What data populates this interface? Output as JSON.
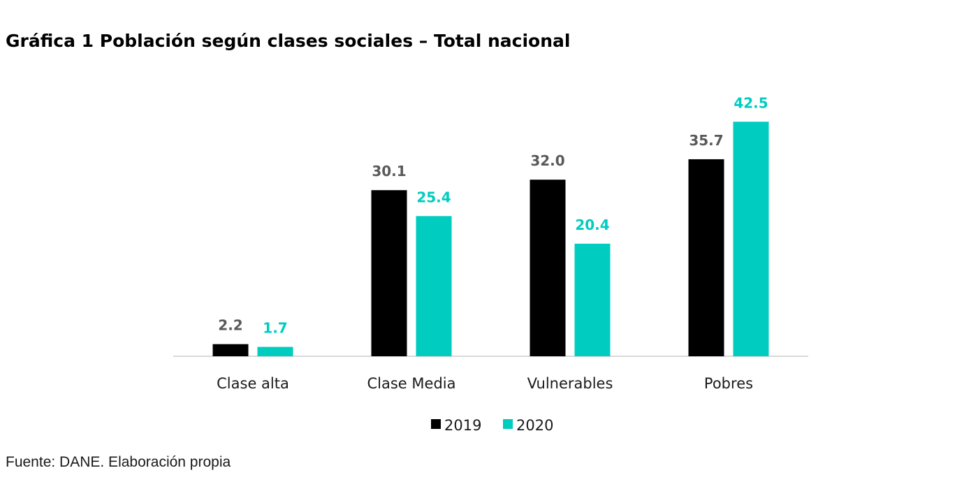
{
  "chart_data": {
    "type": "bar",
    "title": "Gráfica 1 Población según clases sociales – Total nacional",
    "categories": [
      "Clase alta",
      "Clase Media",
      "Vulnerables",
      "Pobres"
    ],
    "series": [
      {
        "name": "2019",
        "values": [
          "2.2",
          "30.1",
          "32.0",
          "35.7"
        ],
        "color": "#000000",
        "label_color": "#595959"
      },
      {
        "name": "2020",
        "values": [
          "1.7",
          "25.4",
          "20.4",
          "42.5"
        ],
        "color": "#00CCC0",
        "label_color": "#00CCC0"
      }
    ],
    "ylim": [
      0,
      45
    ],
    "grid": false,
    "legend": "bottom",
    "xlabel": "",
    "ylabel": ""
  },
  "source": "Fuente: DANE. Elaboración propia"
}
